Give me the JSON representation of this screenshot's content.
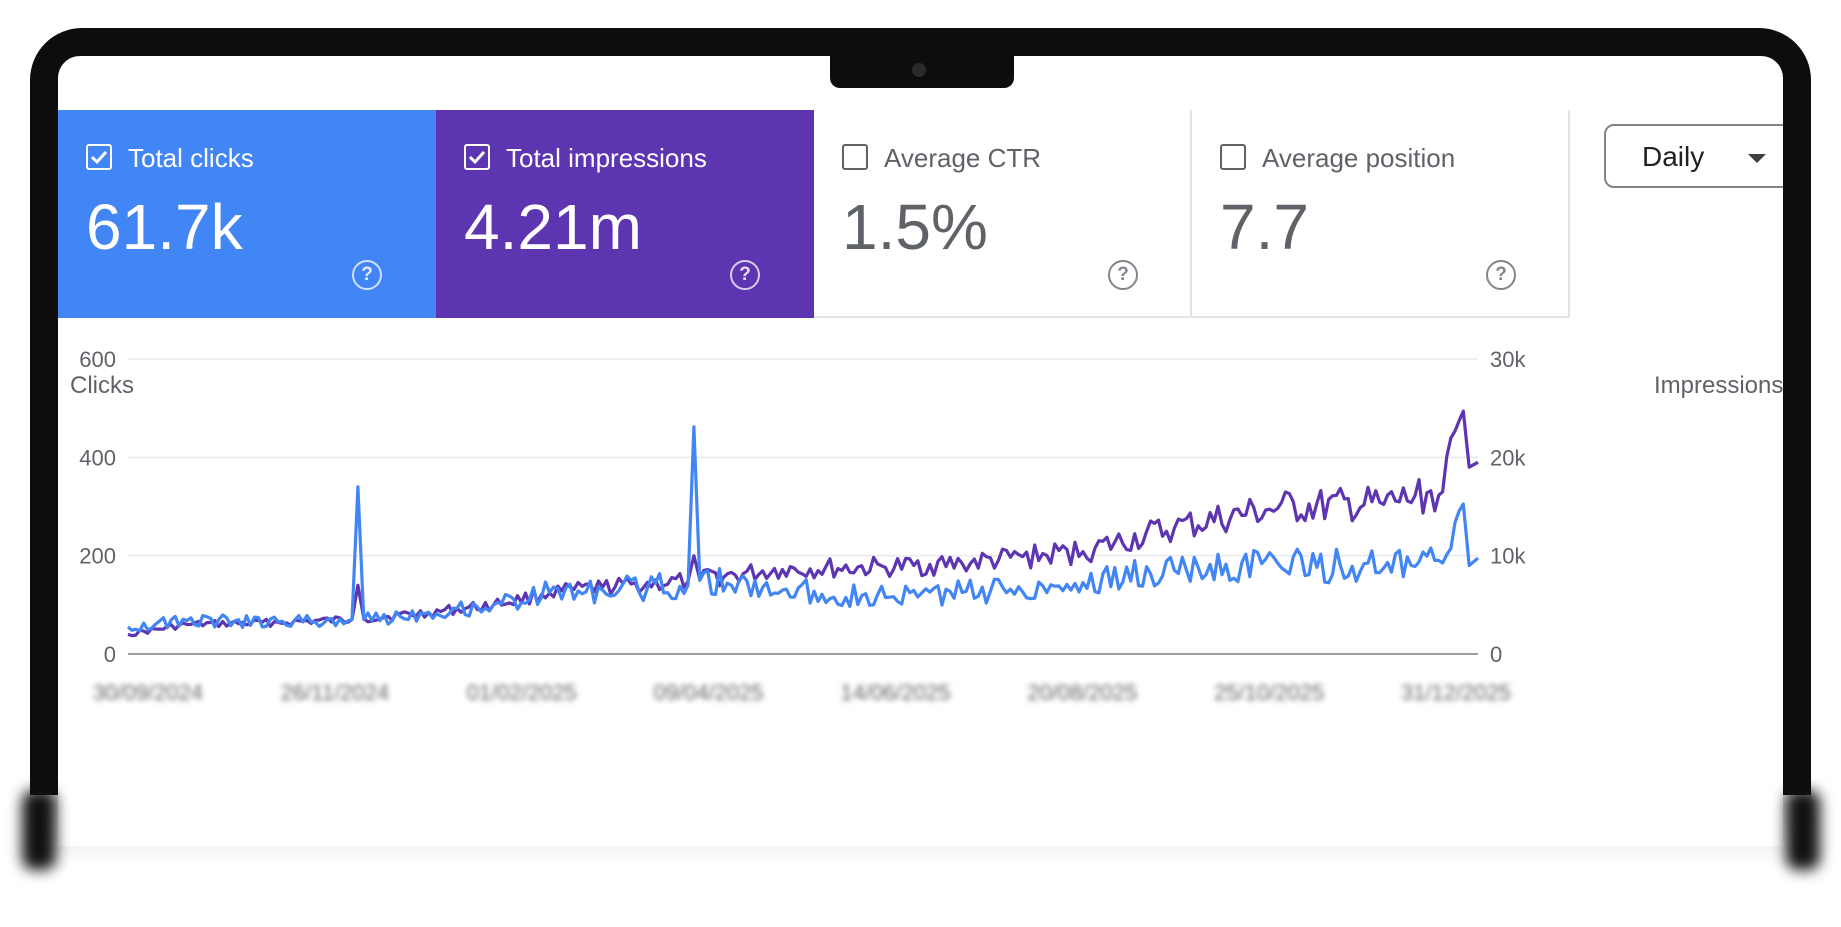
{
  "metrics": [
    {
      "label": "Total clicks",
      "value": "61.7k",
      "checked": true,
      "color": "#4285f4"
    },
    {
      "label": "Total impressions",
      "value": "4.21m",
      "checked": true,
      "color": "#5e35b1"
    },
    {
      "label": "Average CTR",
      "value": "1.5%",
      "checked": false
    },
    {
      "label": "Average position",
      "value": "7.7",
      "checked": false
    }
  ],
  "help_symbol": "?",
  "granularity": {
    "selected": "Daily"
  },
  "chart_data": {
    "type": "line",
    "ylabel": "Clicks",
    "y2label": "Impressions",
    "ylim": [
      0,
      600
    ],
    "y2lim": [
      0,
      30000
    ],
    "yticks": [
      "600",
      "400",
      "200",
      "0"
    ],
    "y2ticks": [
      "30k",
      "20k",
      "10k",
      "0"
    ],
    "xticks": [
      "30/09/2024",
      "26/11/2024",
      "01/02/2025",
      "09/04/2025",
      "14/06/2025",
      "20/08/2025",
      "25/10/2025",
      "31/12/2025"
    ],
    "x_range": [
      "2024-09-30",
      "2026-01-01"
    ],
    "grid": true,
    "series": [
      {
        "name": "Clicks",
        "axis": "left",
        "color": "#4285f4",
        "points": [
          [
            "2024-09-30",
            55
          ],
          [
            "2024-10-20",
            68
          ],
          [
            "2024-11-20",
            65
          ],
          [
            "2024-12-15",
            70
          ],
          [
            "2024-12-17",
            340
          ],
          [
            "2024-12-19",
            70
          ],
          [
            "2025-01-10",
            85
          ],
          [
            "2025-02-01",
            100
          ],
          [
            "2025-02-20",
            125
          ],
          [
            "2025-03-10",
            130
          ],
          [
            "2025-04-08",
            140
          ],
          [
            "2025-04-10",
            462
          ],
          [
            "2025-04-12",
            150
          ],
          [
            "2025-05-10",
            130
          ],
          [
            "2025-06-14",
            115
          ],
          [
            "2025-07-10",
            125
          ],
          [
            "2025-08-20",
            145
          ],
          [
            "2025-09-20",
            170
          ],
          [
            "2025-10-25",
            185
          ],
          [
            "2025-11-30",
            175
          ],
          [
            "2025-12-20",
            185
          ],
          [
            "2025-12-27",
            305
          ],
          [
            "2025-12-29",
            180
          ],
          [
            "2026-01-01",
            195
          ]
        ]
      },
      {
        "name": "Impressions",
        "axis": "right",
        "color": "#5e35b1",
        "points": [
          [
            "2024-09-30",
            2000
          ],
          [
            "2024-10-20",
            3000
          ],
          [
            "2024-11-20",
            3200
          ],
          [
            "2024-12-15",
            3500
          ],
          [
            "2024-12-17",
            7000
          ],
          [
            "2024-12-19",
            3600
          ],
          [
            "2025-01-10",
            4200
          ],
          [
            "2025-02-01",
            5000
          ],
          [
            "2025-02-20",
            6200
          ],
          [
            "2025-03-10",
            6800
          ],
          [
            "2025-04-08",
            7400
          ],
          [
            "2025-04-10",
            10000
          ],
          [
            "2025-04-12",
            7600
          ],
          [
            "2025-05-10",
            8600
          ],
          [
            "2025-06-14",
            8800
          ],
          [
            "2025-07-10",
            9200
          ],
          [
            "2025-08-20",
            10400
          ],
          [
            "2025-09-20",
            12800
          ],
          [
            "2025-10-25",
            14800
          ],
          [
            "2025-11-30",
            15200
          ],
          [
            "2025-12-20",
            16500
          ],
          [
            "2025-12-27",
            24700
          ],
          [
            "2025-12-29",
            19000
          ],
          [
            "2026-01-01",
            19500
          ]
        ]
      }
    ]
  }
}
